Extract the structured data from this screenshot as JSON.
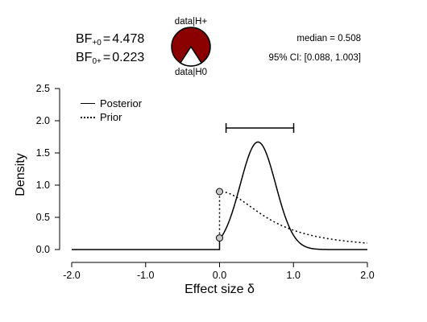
{
  "bayes_factors": {
    "bf10": {
      "prefix": "BF",
      "sub": "+0",
      "value": "4.478"
    },
    "bf01": {
      "prefix": "BF",
      "sub": "0+",
      "value": "0.223"
    }
  },
  "summary": {
    "median": "median = 0.508",
    "ci": "95% CI: [0.088, 1.003]"
  },
  "pie": {
    "top_label": "data|H+",
    "bottom_label": "data|H0",
    "h_plus_fraction": 0.817,
    "h_plus_color": "#8b0000",
    "h0_color": "#ffffff"
  },
  "legend": {
    "posterior": "Posterior",
    "prior": "Prior"
  },
  "chart_data": {
    "type": "line",
    "xlabel": "Effect size δ",
    "ylabel": "Density",
    "xlim": [
      -2.0,
      2.0
    ],
    "ylim": [
      0.0,
      2.5
    ],
    "xticks": [
      "-2.0",
      "-1.0",
      "0.0",
      "1.0",
      "2.0"
    ],
    "xtick_values": [
      -2.0,
      -1.0,
      0.0,
      1.0,
      2.0
    ],
    "yticks": [
      "0.0",
      "0.5",
      "1.0",
      "1.5",
      "2.0",
      "2.5"
    ],
    "ytick_values": [
      0.0,
      0.5,
      1.0,
      1.5,
      2.0,
      2.5
    ],
    "grid": false,
    "legend_position": "top-left",
    "series": [
      {
        "name": "Posterior",
        "style": "solid",
        "params": {
          "mode": 0.52,
          "sd": 0.2392
        }
      },
      {
        "name": "Prior",
        "style": "dotted",
        "params": {
          "location": 0.0,
          "scale": 0.707,
          "one_sided": "positive"
        }
      }
    ],
    "prior_density_at_zero": 0.9,
    "posterior_density_at_zero": 0.18,
    "credible_interval": [
      0.088,
      1.003
    ],
    "median": 0.508
  }
}
